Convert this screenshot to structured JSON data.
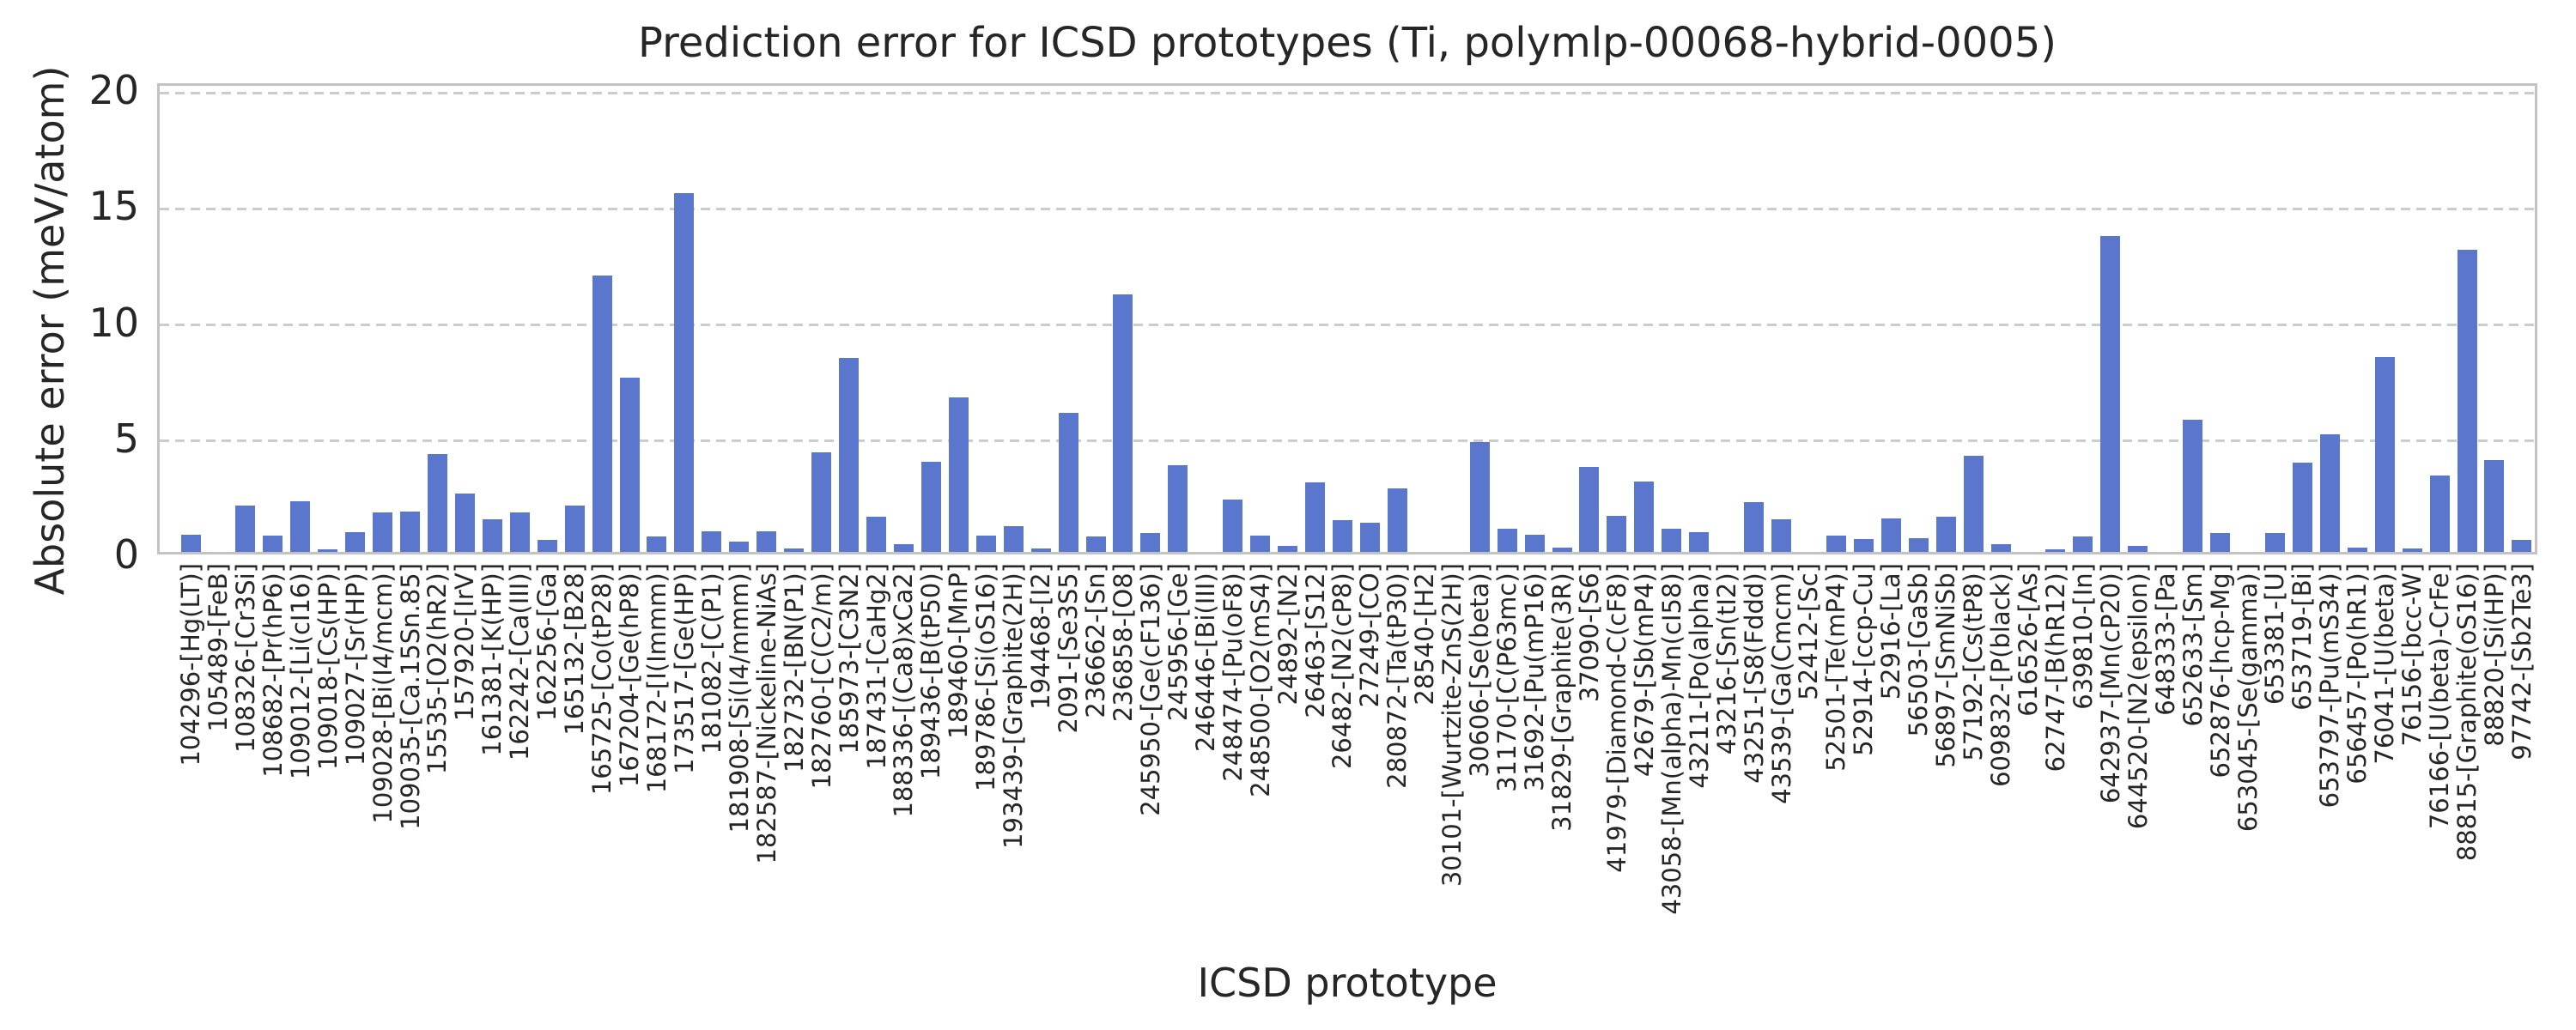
{
  "figure": {
    "title": "Prediction error for ICSD prototypes (Ti, polymlp-00068-hybrid-0005)",
    "xlabel": "ICSD prototype",
    "ylabel": "Absolute error (meV/atom)"
  },
  "colors": {
    "bar": "#5b76cd",
    "grid": "#cccccc",
    "spine": "#c3c3c3",
    "text": "#262626"
  },
  "chart_data": {
    "type": "bar",
    "title": "Prediction error for ICSD prototypes (Ti, polymlp-00068-hybrid-0005)",
    "xlabel": "ICSD prototype",
    "ylabel": "Absolute error (meV/atom)",
    "ylim": [
      0,
      20
    ],
    "yticks": [
      0,
      5,
      10,
      15,
      20
    ],
    "grid": "horizontal-dashed",
    "legend": "none",
    "categories": [
      "104296-[Hg(LT)]",
      "105489-[FeB]",
      "108326-[Cr3Si]",
      "108682-[Pr(hP6)]",
      "109012-[Li(cI16)]",
      "109018-[Cs(HP)]",
      "109027-[Sr(HP)]",
      "109028-[Bi(I4/mcm)]",
      "109035-[Ca.15Sn.85]",
      "15535-[O2(hR2)]",
      "157920-[IrV]",
      "161381-[K(HP)]",
      "162242-[Ca(III)]",
      "162256-[Ga]",
      "165132-[B28]",
      "165725-[Co(tP28)]",
      "167204-[Ge(hP8)]",
      "168172-[I(Immm)]",
      "173517-[Ge(HP)]",
      "181082-[C(P1)]",
      "181908-[Si(I4/mmm)]",
      "182587-[Nickeline-NiAs]",
      "182732-[BN(P1)]",
      "182760-[C(C2/m)]",
      "185973-[C3N2]",
      "187431-[CaHg2]",
      "188336-[(Ca8)xCa2]",
      "189436-[B(tP50)]",
      "189460-[MnP]",
      "189786-[Si(oS16)]",
      "193439-[Graphite(2H)]",
      "194468-[I2]",
      "2091-[Se3S5]",
      "236662-[Sn]",
      "236858-[O8]",
      "245950-[Ge(cF136)]",
      "245956-[Ge]",
      "246446-[Bi(III)]",
      "248474-[Pu(oF8)]",
      "248500-[O2(mS4)]",
      "24892-[N2]",
      "26463-[S12]",
      "26482-[N2(cP8)]",
      "27249-[CO]",
      "280872-[Ta(tP30)]",
      "28540-[H2]",
      "30101-[Wurtzite-ZnS(2H)]",
      "30606-[Se(beta)]",
      "31170-[C(P63mc)]",
      "31692-[Pu(mP16)]",
      "31829-[Graphite(3R)]",
      "37090-[S6]",
      "41979-[Diamond-C(cF8)]",
      "42679-[Sb(mP4)]",
      "43058-[Mn(alpha)-Mn(cI58)]",
      "43211-[Po(alpha)]",
      "43216-[Sn(tI2)]",
      "43251-[S8(Fddd)]",
      "43539-[Ga(Cmcm)]",
      "52412-[Sc]",
      "52501-[Te(mP4)]",
      "52914-[ccp-Cu]",
      "52916-[La]",
      "56503-[GaSb]",
      "56897-[SmNiSb]",
      "57192-[Cs(tP8)]",
      "609832-[P(black)]",
      "616526-[As]",
      "62747-[B(hR12)]",
      "639810-[In]",
      "642937-[Mn(cP20)]",
      "644520-[N2(epsilon)]",
      "648333-[Pa]",
      "652633-[Sm]",
      "652876-[hcp-Mg]",
      "653045-[Se(gamma)]",
      "653381-[U]",
      "653719-[Bi]",
      "653797-[Pu(mS34)]",
      "656457-[Po(hR1)]",
      "76041-[U(beta)]",
      "76156-[bcc-W]",
      "76166-[U(beta)-CrFe]",
      "88815-[Graphite(oS16)]",
      "88820-[Si(HP)]",
      "97742-[Sb2Te3]"
    ],
    "values": [
      0.75,
      0.0,
      2.0,
      0.7,
      2.2,
      0.1,
      0.85,
      1.7,
      1.75,
      4.2,
      2.5,
      1.4,
      1.7,
      0.5,
      2.0,
      11.9,
      7.5,
      0.65,
      15.45,
      0.9,
      0.45,
      0.9,
      0.15,
      4.3,
      8.35,
      1.5,
      0.35,
      3.9,
      6.65,
      0.7,
      1.1,
      0.15,
      6.0,
      0.65,
      11.1,
      0.8,
      3.75,
      0.0,
      2.25,
      0.7,
      0.25,
      3.0,
      1.35,
      1.25,
      2.75,
      0.0,
      0.0,
      4.75,
      1.0,
      0.75,
      0.2,
      3.65,
      1.55,
      3.05,
      1.0,
      0.85,
      0.0,
      2.15,
      1.4,
      0.0,
      0.7,
      0.55,
      1.45,
      0.6,
      1.5,
      4.15,
      0.35,
      0.0,
      0.1,
      0.65,
      13.6,
      0.25,
      0.0,
      5.7,
      0.8,
      0.0,
      0.8,
      3.85,
      5.05,
      0.2,
      8.4,
      0.15,
      3.3,
      13.0,
      3.95,
      0.5
    ]
  }
}
